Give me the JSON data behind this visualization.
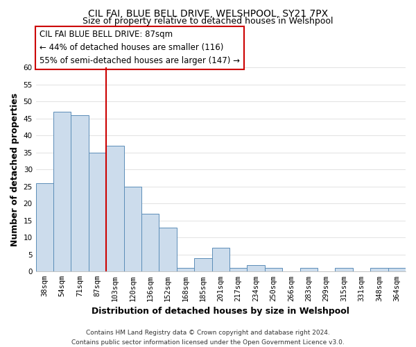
{
  "title": "CIL FAI, BLUE BELL DRIVE, WELSHPOOL, SY21 7PX",
  "subtitle": "Size of property relative to detached houses in Welshpool",
  "xlabel": "Distribution of detached houses by size in Welshpool",
  "ylabel": "Number of detached properties",
  "bar_color": "#ccdcec",
  "bar_edge_color": "#5b8db8",
  "bin_labels": [
    "38sqm",
    "54sqm",
    "71sqm",
    "87sqm",
    "103sqm",
    "120sqm",
    "136sqm",
    "152sqm",
    "168sqm",
    "185sqm",
    "201sqm",
    "217sqm",
    "234sqm",
    "250sqm",
    "266sqm",
    "283sqm",
    "299sqm",
    "315sqm",
    "331sqm",
    "348sqm",
    "364sqm"
  ],
  "bin_values": [
    26,
    47,
    46,
    35,
    37,
    25,
    17,
    13,
    1,
    4,
    7,
    1,
    2,
    1,
    0,
    1,
    0,
    1,
    0,
    1,
    1
  ],
  "vline_x": 3.5,
  "vline_color": "#cc0000",
  "ylim": [
    0,
    60
  ],
  "yticks": [
    0,
    5,
    10,
    15,
    20,
    25,
    30,
    35,
    40,
    45,
    50,
    55,
    60
  ],
  "annotation_title": "CIL FAI BLUE BELL DRIVE: 87sqm",
  "annotation_line1": "← 44% of detached houses are smaller (116)",
  "annotation_line2": "55% of semi-detached houses are larger (147) →",
  "footnote1": "Contains HM Land Registry data © Crown copyright and database right 2024.",
  "footnote2": "Contains public sector information licensed under the Open Government Licence v3.0.",
  "background_color": "#ffffff",
  "grid_color": "#dddddd",
  "title_fontsize": 10,
  "subtitle_fontsize": 9,
  "axis_label_fontsize": 9,
  "tick_fontsize": 7.5,
  "annotation_fontsize": 8.5,
  "footnote_fontsize": 6.5
}
